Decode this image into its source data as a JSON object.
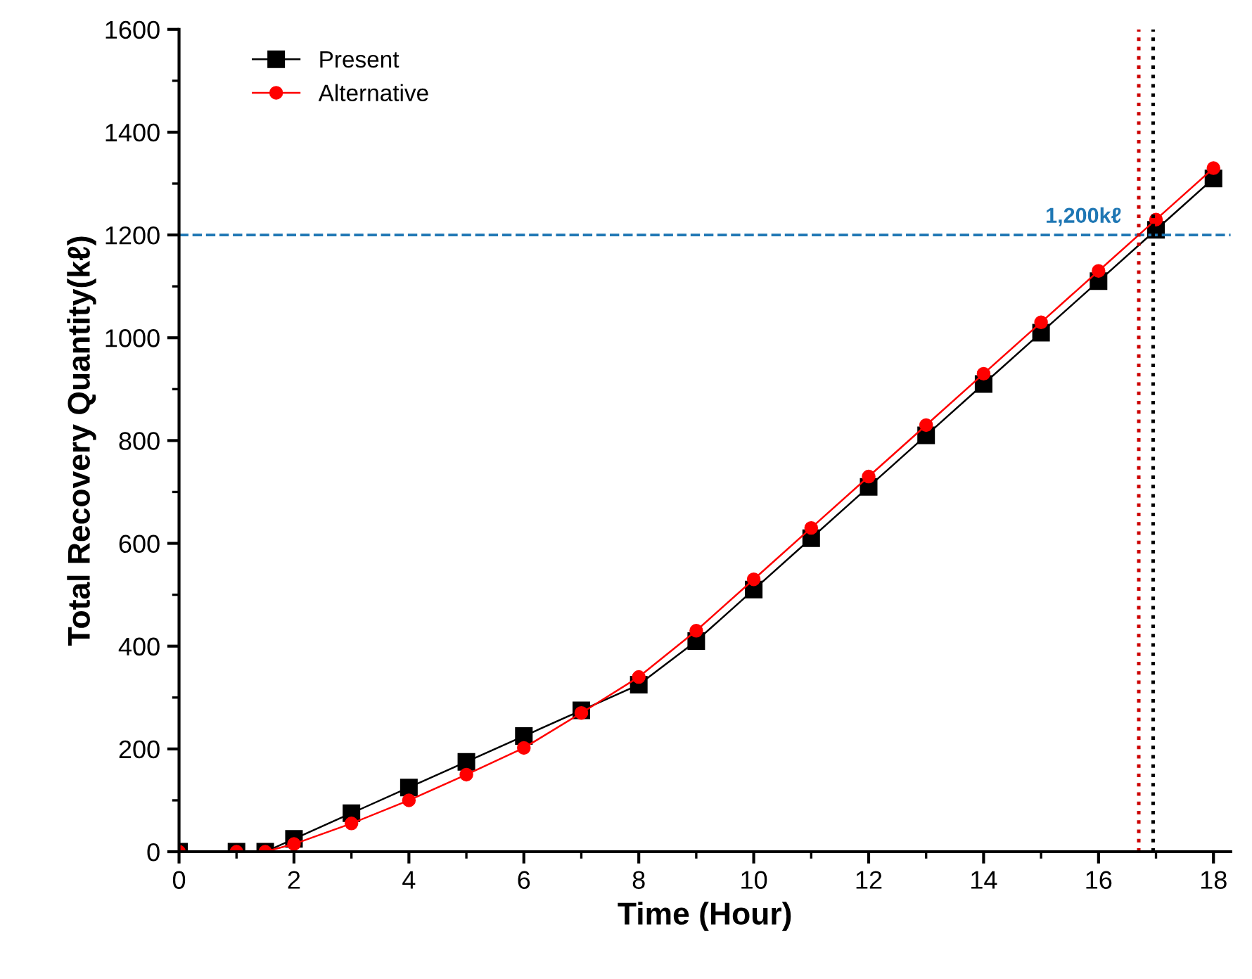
{
  "chart_data": {
    "type": "line",
    "xlabel": "Time (Hour)",
    "ylabel": "Total Recovery Quantity(kℓ)",
    "x": [
      0,
      1,
      1.5,
      2,
      3,
      4,
      5,
      6,
      7,
      8,
      9,
      10,
      11,
      12,
      13,
      14,
      15,
      16,
      17,
      18
    ],
    "series": [
      {
        "name": "Present",
        "color": "#000000",
        "marker": "square",
        "values": [
          0,
          0,
          0,
          25,
          75,
          125,
          175,
          225,
          275,
          325,
          410,
          510,
          610,
          710,
          810,
          910,
          1010,
          1110,
          1210,
          1310
        ]
      },
      {
        "name": "Alternative",
        "color": "#ff0000",
        "marker": "circle",
        "values": [
          0,
          0,
          0,
          15,
          55,
          100,
          150,
          202,
          270,
          340,
          430,
          530,
          630,
          730,
          830,
          930,
          1030,
          1130,
          1230,
          1330
        ]
      }
    ],
    "xlim": [
      0,
      18.3
    ],
    "ylim": [
      0,
      1600
    ],
    "xticks": [
      0,
      2,
      4,
      6,
      8,
      10,
      12,
      14,
      16,
      18
    ],
    "yticks": [
      0,
      200,
      400,
      600,
      800,
      1000,
      1200,
      1400,
      1600
    ],
    "ref_lines": [
      {
        "axis": "y",
        "value": 1200,
        "label": "1,200kℓ",
        "color": "#1f77b4",
        "line_style": "dashed"
      },
      {
        "axis": "x",
        "value": 16.7,
        "color": "#cc0000",
        "line_style": "dotted"
      },
      {
        "axis": "x",
        "value": 16.95,
        "color": "#000000",
        "line_style": "dotted"
      }
    ],
    "legend": "top left",
    "grid": false,
    "line_style": "solid"
  }
}
